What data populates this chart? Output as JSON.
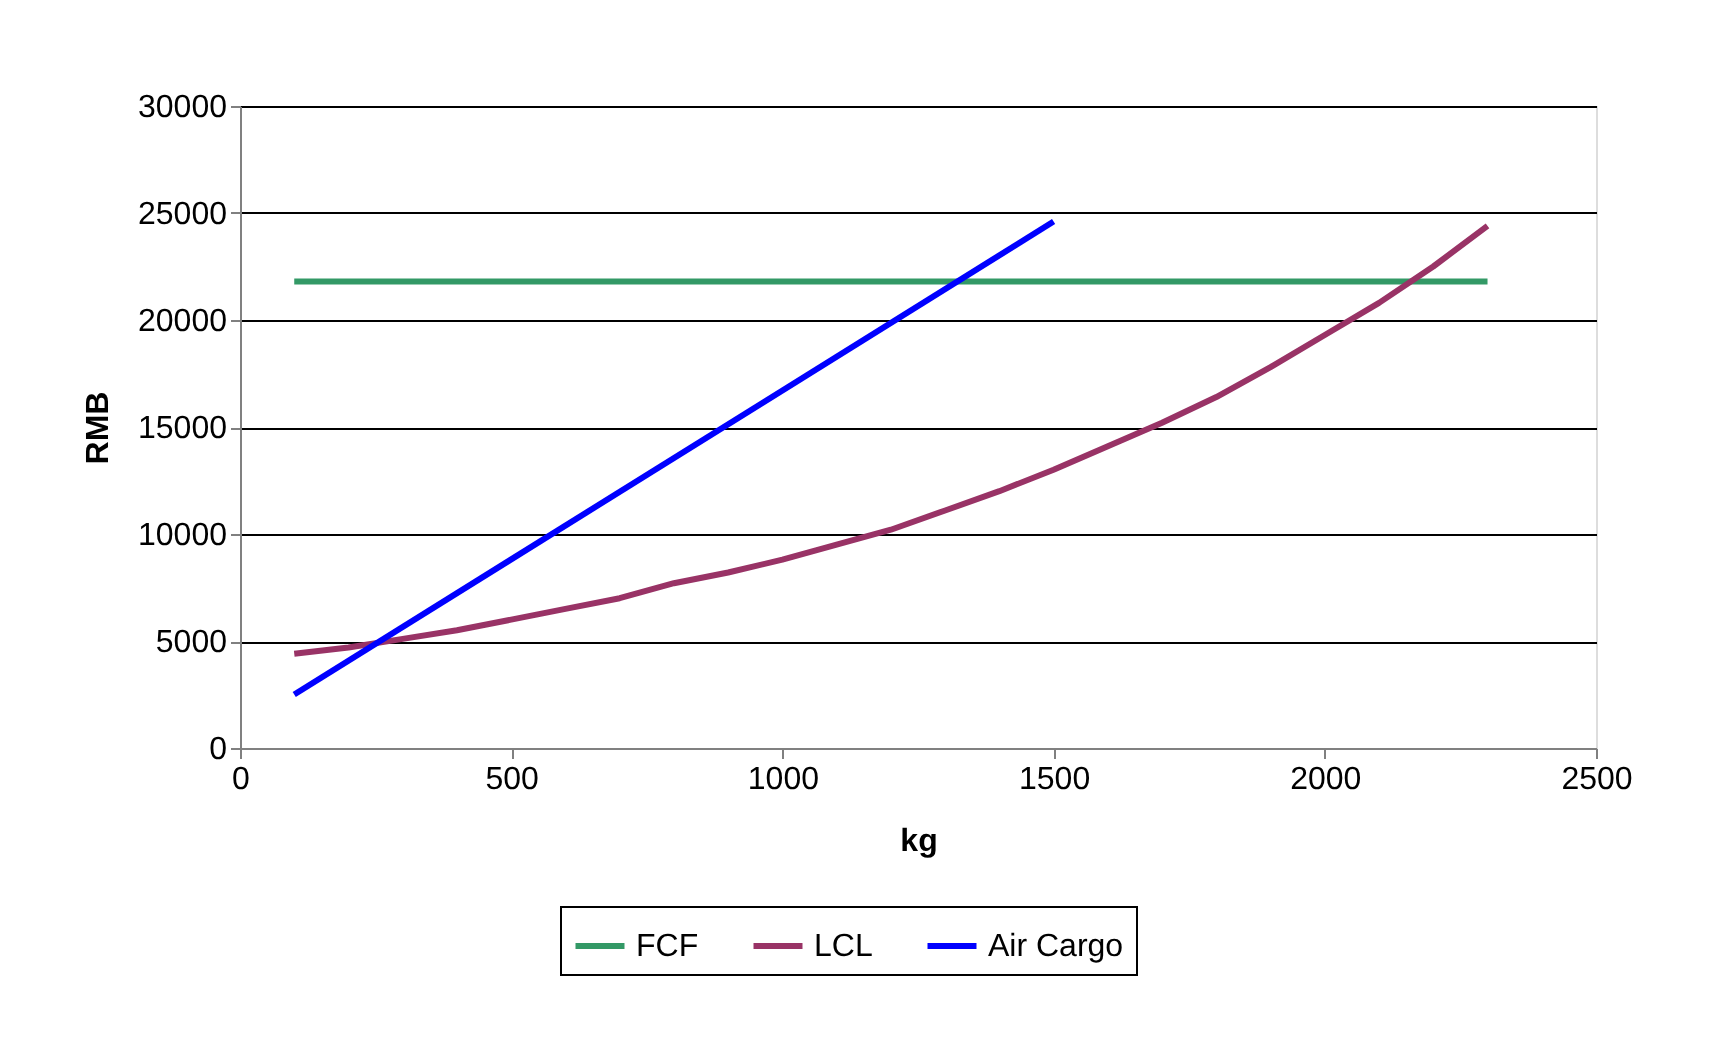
{
  "chart_data": {
    "type": "line",
    "xlabel": "kg",
    "ylabel": "RMB",
    "xlim": [
      0,
      2500
    ],
    "xticks": [
      0,
      500,
      1000,
      1500,
      2000,
      2500
    ],
    "ylim": [
      0,
      30000
    ],
    "yticks": [
      0,
      5000,
      10000,
      15000,
      20000,
      25000,
      30000
    ],
    "grid": "y",
    "legend": "bottom",
    "marker": "none",
    "line_style": "solid",
    "series": [
      {
        "name": "FCF",
        "color": "#339966",
        "x": [
          100,
          2300
        ],
        "values": [
          21800,
          21800
        ]
      },
      {
        "name": "LCL",
        "color": "#993366",
        "x": [
          100,
          200,
          300,
          400,
          500,
          600,
          700,
          800,
          900,
          1000,
          1100,
          1200,
          1300,
          1400,
          1500,
          1600,
          1700,
          1800,
          1900,
          2000,
          2100,
          2200,
          2300
        ],
        "values": [
          4400,
          4700,
          5100,
          5500,
          6000,
          6500,
          7000,
          7700,
          8200,
          8800,
          9500,
          10200,
          11100,
          12000,
          13000,
          14100,
          15200,
          16400,
          17800,
          19300,
          20800,
          22500,
          24400
        ]
      },
      {
        "name": "Air Cargo",
        "color": "#0000ff",
        "x": [
          100,
          1500
        ],
        "values": [
          2500,
          24600
        ]
      }
    ]
  }
}
